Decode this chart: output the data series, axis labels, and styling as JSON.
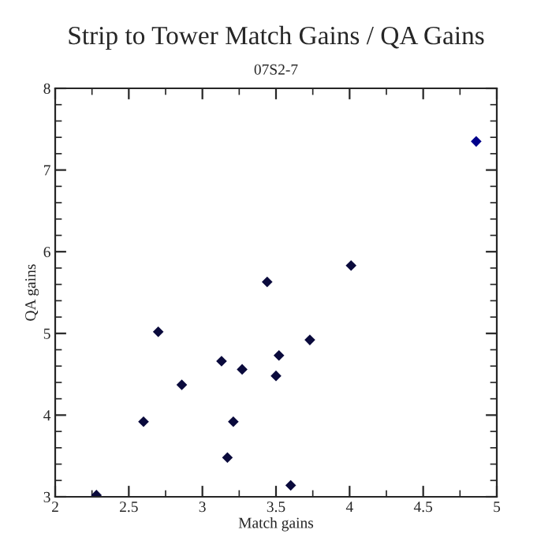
{
  "chart_data": {
    "type": "scatter",
    "title": "Strip to Tower Match Gains / QA Gains",
    "subtitle": "07S2-7",
    "xlabel": "Match gains",
    "ylabel": "QA gains",
    "x": [
      2.28,
      2.6,
      2.7,
      2.86,
      3.13,
      3.17,
      3.21,
      3.27,
      3.44,
      3.5,
      3.52,
      3.6,
      3.73,
      4.01,
      4.86
    ],
    "series": [
      {
        "colors": [
          "#0a0a3c",
          "#0a0a3c",
          "#0a0a3c",
          "#0a0a3c",
          "#0a0a3c",
          "#0a0a3c",
          "#0a0a3c",
          "#0a0a3c",
          "#0a0a3c",
          "#0a0a3c",
          "#0a0a3c",
          "#0a0a3c",
          "#0a0a3c",
          "#0a0a3c",
          "#00008b"
        ],
        "values": [
          3.02,
          3.92,
          5.02,
          4.37,
          4.66,
          3.48,
          3.92,
          4.56,
          5.63,
          4.48,
          4.73,
          3.14,
          4.92,
          5.83,
          7.35
        ]
      }
    ],
    "xlim": [
      2,
      5
    ],
    "xticks": [
      2,
      2.5,
      3,
      3.5,
      4,
      4.5,
      5
    ],
    "ylim": [
      3,
      8
    ],
    "yticks": [
      3,
      4,
      5,
      6,
      7,
      8
    ],
    "marker": "diamond",
    "grid": false,
    "legend": false
  }
}
